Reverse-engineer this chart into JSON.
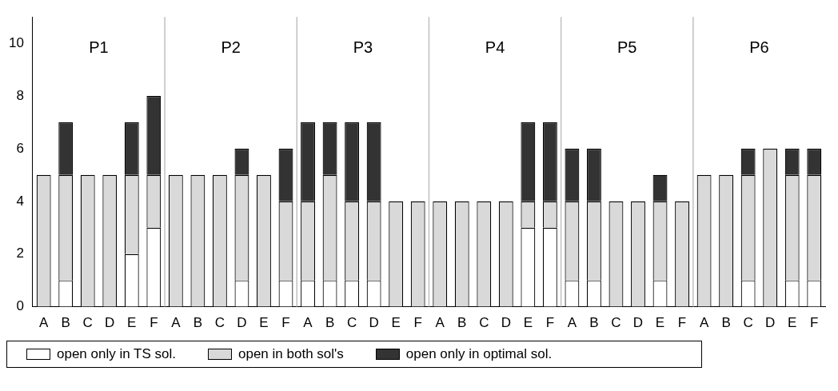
{
  "chart_data": {
    "type": "bar",
    "stacked": true,
    "categories": [
      "A",
      "B",
      "C",
      "D",
      "E",
      "F",
      "A",
      "B",
      "C",
      "D",
      "E",
      "F",
      "A",
      "B",
      "C",
      "D",
      "E",
      "F",
      "A",
      "B",
      "C",
      "D",
      "E",
      "F",
      "A",
      "B",
      "C",
      "D",
      "E",
      "F",
      "A",
      "B",
      "C",
      "D",
      "E",
      "F"
    ],
    "series": [
      {
        "name": "open only in TS sol.",
        "color": "#ffffff",
        "values": [
          0,
          1,
          0,
          0,
          2,
          3,
          0,
          0,
          0,
          1,
          0,
          1,
          1,
          1,
          1,
          1,
          0,
          0,
          0,
          0,
          0,
          0,
          3,
          3,
          1,
          1,
          0,
          0,
          1,
          0,
          0,
          0,
          1,
          0,
          1,
          1
        ]
      },
      {
        "name": "open in both sol's",
        "color": "#d9d9d9",
        "values": [
          5,
          4,
          5,
          5,
          3,
          2,
          5,
          5,
          5,
          4,
          5,
          3,
          3,
          4,
          3,
          3,
          4,
          4,
          4,
          4,
          4,
          4,
          1,
          1,
          3,
          3,
          4,
          4,
          3,
          4,
          5,
          5,
          4,
          6,
          4,
          4
        ]
      },
      {
        "name": "open only in optimal sol.",
        "color": "#333333",
        "values": [
          0,
          2,
          0,
          0,
          2,
          3,
          0,
          0,
          0,
          1,
          0,
          2,
          3,
          2,
          3,
          3,
          0,
          0,
          0,
          0,
          0,
          0,
          3,
          3,
          2,
          2,
          0,
          0,
          1,
          0,
          0,
          0,
          1,
          0,
          1,
          1
        ]
      }
    ],
    "annotations": [
      "P1",
      "P2",
      "P3",
      "P4",
      "P5",
      "P6"
    ],
    "ylim": [
      0,
      11
    ],
    "yticks": [
      0,
      2,
      4,
      6,
      8,
      10
    ],
    "grid": false,
    "legend": "bottom"
  }
}
